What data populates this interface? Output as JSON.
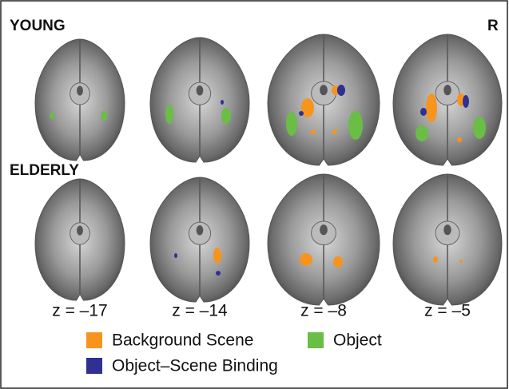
{
  "figure": {
    "groups": [
      "YOUNG",
      "ELDERLY"
    ],
    "orientation": "R",
    "slice_labels": [
      "z = –17",
      "z = –14",
      "z = –8",
      "z = –5"
    ],
    "legend": [
      {
        "name": "Background Scene",
        "color": "#f7941d"
      },
      {
        "name": "Object",
        "color": "#6abd45"
      },
      {
        "name": "Object–Scene Binding",
        "color": "#2e3192"
      }
    ]
  }
}
